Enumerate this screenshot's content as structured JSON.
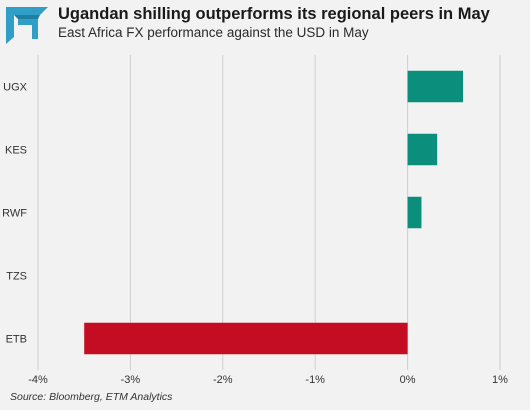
{
  "header": {
    "title": "Ugandan shilling outperforms its regional peers in May",
    "subtitle": "East Africa FX performance against the USD in May",
    "logo_icon": "etm-analytics-logo-icon"
  },
  "footer": {
    "source": "Source: Bloomberg, ETM Analytics"
  },
  "colors": {
    "positive": "#0b8f7c",
    "negative": "#c40d22",
    "grid": "#cfcfcf",
    "logo": "#2f9fc7"
  },
  "chart_data": {
    "type": "bar",
    "orientation": "horizontal",
    "title": "Ugandan shilling outperforms its regional peers in May",
    "subtitle": "East Africa FX performance against the USD in May",
    "categories": [
      "UGX",
      "KES",
      "RWF",
      "TZS",
      "ETB"
    ],
    "values": [
      0.6,
      0.32,
      0.15,
      0.0,
      -3.5
    ],
    "unit": "%",
    "xlim": [
      -4,
      1
    ],
    "x_ticks": [
      -4,
      -3,
      -2,
      -1,
      0,
      1
    ],
    "x_tick_labels": [
      "-4%",
      "-3%",
      "-2%",
      "-1%",
      "0%",
      "1%"
    ],
    "xlabel": "",
    "ylabel": "",
    "grid": "vertical",
    "legend": "none"
  }
}
